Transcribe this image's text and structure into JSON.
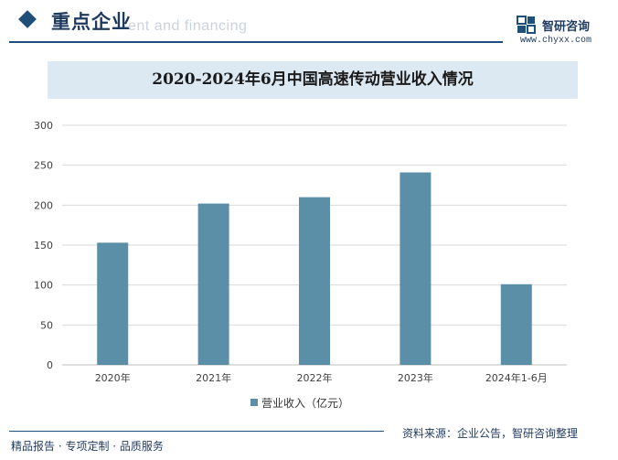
{
  "header": {
    "title": "重点企业",
    "watermark_text": "ent and financing",
    "brand_name": "智研咨询",
    "brand_url": "www.chyxx.com"
  },
  "chart_title": "2020-2024年6月中国高速传动营业收入情况",
  "footer": {
    "left": "精品报告 · 专项定制 · 品质服务",
    "right": "资料来源：企业公告，智研咨询整理"
  },
  "colors": {
    "bar": "#5b8fa8",
    "title_bg": "#dde9f2",
    "brand": "#1f4e79"
  },
  "icons": {
    "brand_logo": "chyxx-logo-icon",
    "section_marker": "diamond-icon"
  },
  "chart_data": {
    "type": "bar",
    "categories": [
      "2020年",
      "2021年",
      "2022年",
      "2023年",
      "2024年1-6月"
    ],
    "series": [
      {
        "name": "营业收入（亿元）",
        "values": [
          153,
          202,
          210,
          241,
          101
        ]
      }
    ],
    "title": "2020-2024年6月中国高速传动营业收入情况",
    "xlabel": "",
    "ylabel": "",
    "ylim": [
      0,
      300
    ],
    "yticks": [
      0,
      50,
      100,
      150,
      200,
      250,
      300
    ],
    "grid": true,
    "legend_position": "bottom"
  }
}
